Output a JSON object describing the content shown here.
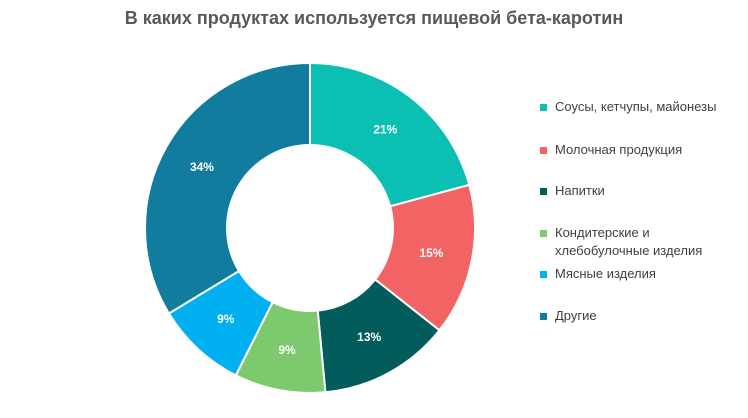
{
  "chart_data": {
    "type": "pie",
    "title": "В каких продуктах используется пищевой бета-каротин",
    "donut": true,
    "legend_position": "right",
    "categories": [
      "Соусы, кетчупы, майонезы",
      "Молочная продукция",
      "Напитки",
      "Кондитерские и хлебобулочные изделия",
      "Мясные изделия",
      "Другие"
    ],
    "values": [
      21,
      15,
      13,
      9,
      9,
      34
    ],
    "labels": [
      "21%",
      "15%",
      "13%",
      "9%",
      "9%",
      "34%"
    ],
    "colors": [
      "#0bbfb3",
      "#f26363",
      "#035c5c",
      "#7dc96e",
      "#00b0f0",
      "#117c9e"
    ],
    "legend_lines": [
      [
        "Соусы, кетчупы, майонезы"
      ],
      [
        "Молочная продукция"
      ],
      [
        "Напитки"
      ],
      [
        "Кондитерские и",
        "хлебобулочные изделия"
      ],
      [
        "Мясные изделия"
      ],
      [
        "Другие"
      ]
    ]
  }
}
